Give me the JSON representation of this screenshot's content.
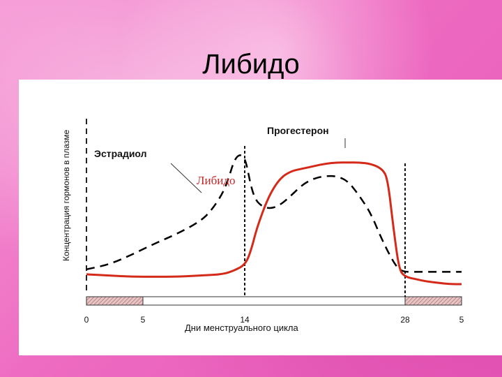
{
  "slide": {
    "title": "Либидо"
  },
  "chart_data": {
    "type": "line",
    "ylabel": "Концентрация гормонов в плазме",
    "xlabel": "Дни менструального цикла",
    "x_ticks": [
      "0",
      "5",
      "14",
      "28",
      "5"
    ],
    "annotation": "Либидо",
    "series": [
      {
        "name": "Эстрадиол",
        "style": "dashed",
        "color": "#000000",
        "x": [
          0,
          2,
          4,
          6,
          8,
          10,
          11,
          12,
          12.5,
          13,
          13.5,
          14,
          14.5,
          15,
          16,
          17,
          18,
          19,
          20,
          21,
          22,
          23,
          24,
          25,
          26,
          27,
          27.5,
          28,
          29,
          30,
          31,
          32,
          33
        ],
        "y": [
          0.06,
          0.1,
          0.18,
          0.27,
          0.35,
          0.45,
          0.54,
          0.68,
          0.8,
          0.95,
          1.0,
          0.96,
          0.72,
          0.6,
          0.55,
          0.58,
          0.66,
          0.75,
          0.8,
          0.82,
          0.82,
          0.78,
          0.66,
          0.52,
          0.3,
          0.12,
          0.06,
          0.04,
          0.04,
          0.04,
          0.04,
          0.04,
          0.04
        ]
      },
      {
        "name": "Прогестерон",
        "style": "solid",
        "color": "#d42a1a",
        "x": [
          0,
          2,
          4,
          6,
          8,
          10,
          12,
          13,
          14,
          14.5,
          15,
          16,
          17,
          18,
          19,
          20,
          21,
          22,
          23,
          24,
          25,
          26,
          26.5,
          27,
          27.5,
          28,
          29,
          30,
          31,
          32,
          33
        ],
        "y": [
          0.02,
          0.01,
          0.0,
          0.0,
          0.0,
          0.01,
          0.02,
          0.05,
          0.1,
          0.22,
          0.4,
          0.65,
          0.8,
          0.86,
          0.88,
          0.9,
          0.92,
          0.93,
          0.93,
          0.93,
          0.92,
          0.88,
          0.8,
          0.4,
          0.06,
          0.0,
          -0.02,
          -0.04,
          -0.05,
          -0.06,
          -0.06
        ]
      }
    ],
    "xlim": [
      0,
      33
    ],
    "ylim": [
      -0.1,
      1.15
    ],
    "grid": false,
    "colors": {
      "menstruation_bar": "#e0b8b8",
      "vertical_markers": "#000000"
    }
  }
}
